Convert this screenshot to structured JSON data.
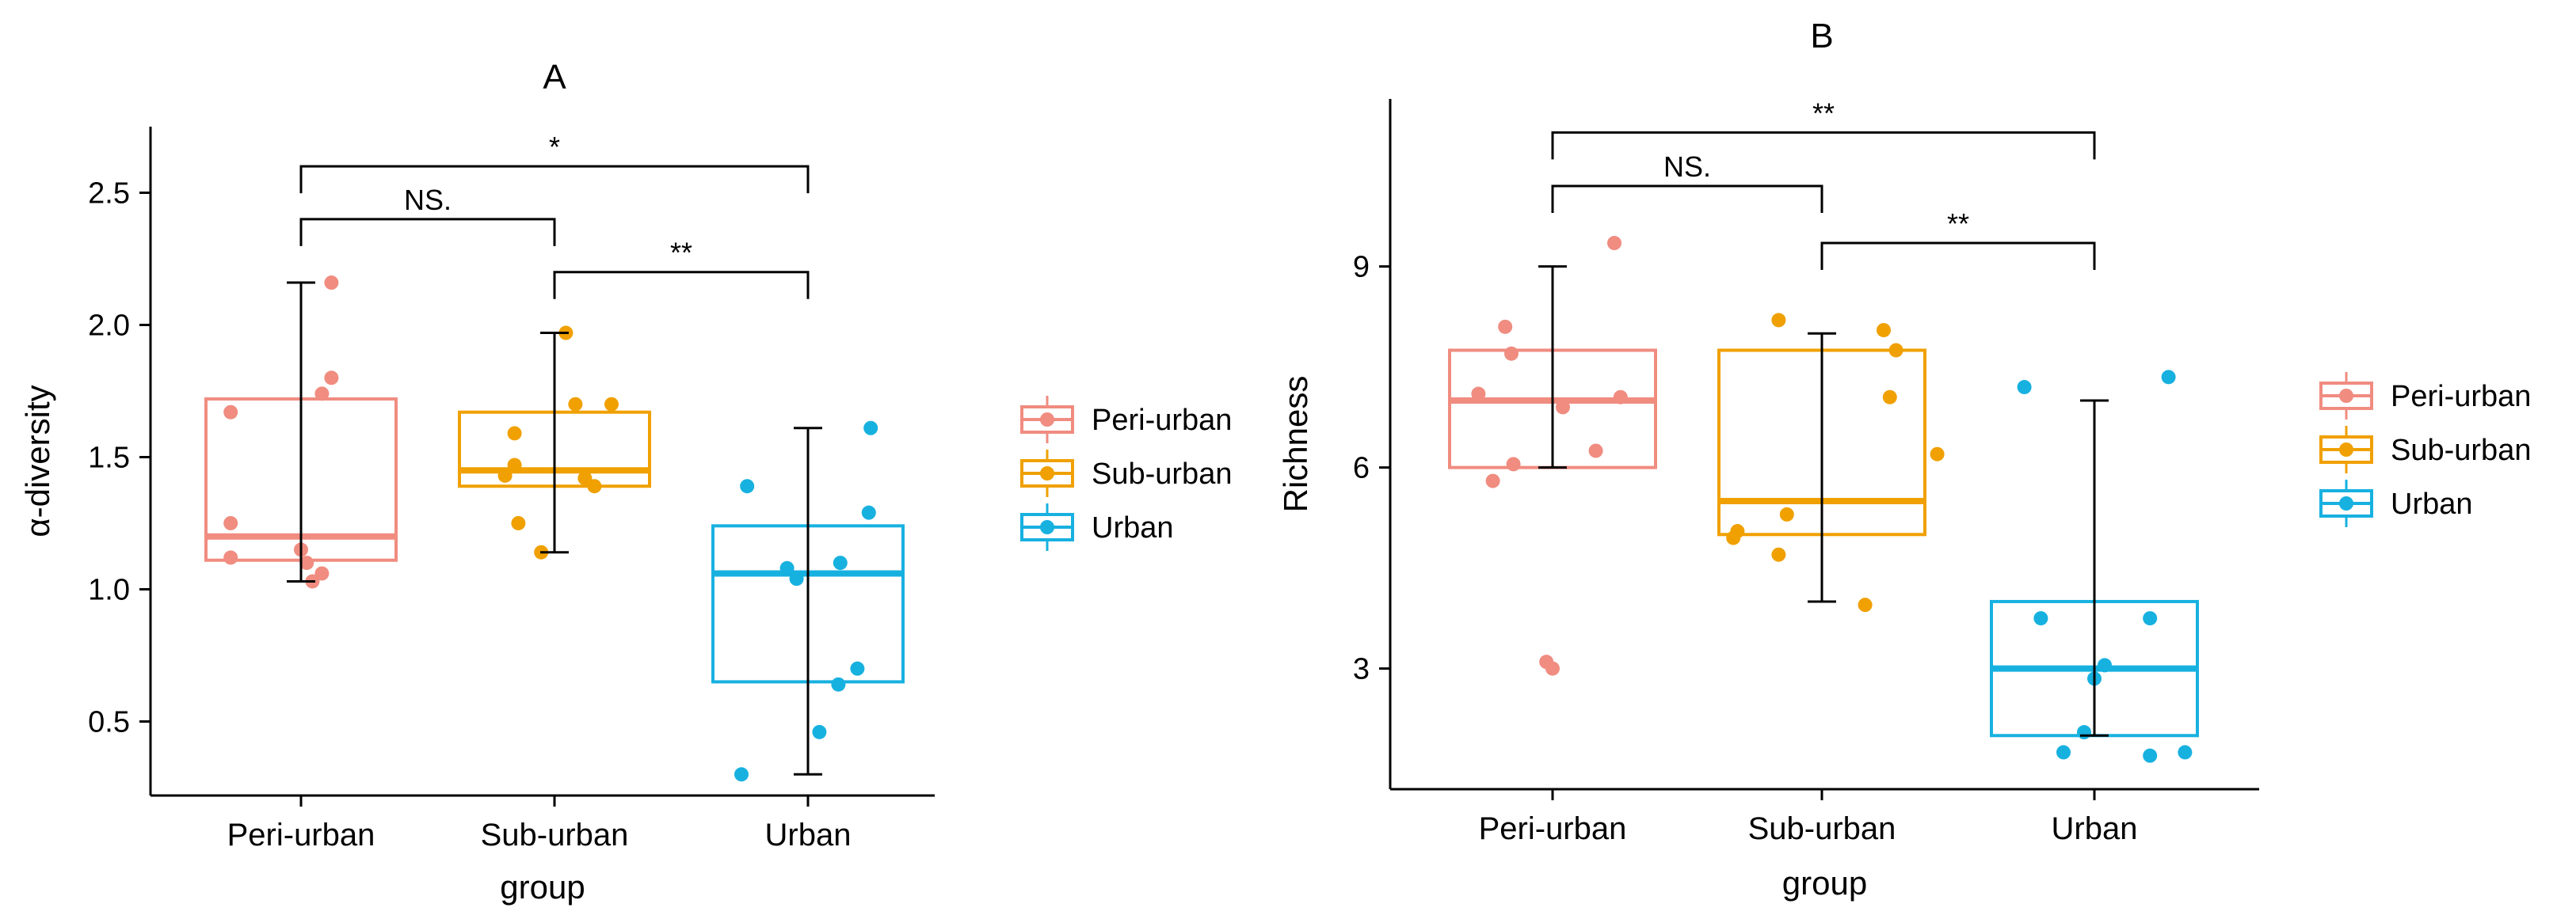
{
  "colors": {
    "Peri-urban": "#F08C80",
    "Sub-urban": "#F0A000",
    "Urban": "#17B1E0",
    "axis": "#000000"
  },
  "chart_data": [
    {
      "type": "boxplot",
      "title": "A",
      "xlabel": "group",
      "ylabel": "α-diversity",
      "categories": [
        "Peri-urban",
        "Sub-urban",
        "Urban"
      ],
      "ylim": [
        0.22,
        2.75
      ],
      "yticks": [
        0.5,
        1.0,
        1.5,
        2.0,
        2.5
      ],
      "ytick_labels": [
        "0.5",
        "1.0",
        "1.5",
        "2.0",
        "2.5"
      ],
      "boxes": [
        {
          "group": "Peri-urban",
          "q1": 1.11,
          "median": 1.2,
          "q3": 1.72,
          "whisker_low": 1.03,
          "whisker_high": 2.16
        },
        {
          "group": "Sub-urban",
          "q1": 1.39,
          "median": 1.45,
          "q3": 1.67,
          "whisker_low": 1.14,
          "whisker_high": 1.97
        },
        {
          "group": "Urban",
          "q1": 0.65,
          "median": 1.06,
          "q3": 1.24,
          "whisker_low": 0.3,
          "whisker_high": 1.61
        }
      ],
      "points": [
        {
          "group": "Peri-urban",
          "values": [
            2.16,
            1.8,
            1.74,
            1.67,
            1.25,
            1.15,
            1.12,
            1.1,
            1.06,
            1.03
          ],
          "jitter": [
            0.16,
            0.16,
            0.11,
            -0.37,
            -0.37,
            0.0,
            -0.37,
            0.03,
            0.11,
            0.06
          ]
        },
        {
          "group": "Sub-urban",
          "values": [
            1.97,
            1.7,
            1.7,
            1.59,
            1.47,
            1.43,
            1.42,
            1.39,
            1.25,
            1.14
          ],
          "jitter": [
            0.06,
            0.11,
            0.3,
            -0.21,
            -0.21,
            -0.26,
            0.16,
            0.21,
            -0.19,
            -0.07
          ]
        },
        {
          "group": "Urban",
          "values": [
            1.61,
            1.39,
            1.29,
            1.1,
            1.08,
            1.04,
            0.7,
            0.64,
            0.46,
            0.3
          ],
          "jitter": [
            0.33,
            -0.32,
            0.32,
            0.17,
            -0.11,
            -0.06,
            0.26,
            0.16,
            0.06,
            -0.35
          ]
        }
      ],
      "significance": [
        {
          "from": "Peri-urban",
          "to": "Urban",
          "label": "*",
          "y": 2.6
        },
        {
          "from": "Peri-urban",
          "to": "Sub-urban",
          "label": "NS.",
          "y": 2.4
        },
        {
          "from": "Sub-urban",
          "to": "Urban",
          "label": "**",
          "y": 2.2
        }
      ],
      "legend": {
        "position": "right",
        "entries": [
          "Peri-urban",
          "Sub-urban",
          "Urban"
        ]
      }
    },
    {
      "type": "boxplot",
      "title": "B",
      "xlabel": "group",
      "ylabel": "Richness",
      "categories": [
        "Peri-urban",
        "Sub-urban",
        "Urban"
      ],
      "ylim": [
        1.2,
        11.5
      ],
      "yticks": [
        3,
        6,
        9
      ],
      "ytick_labels": [
        "3",
        "6",
        "9"
      ],
      "boxes": [
        {
          "group": "Peri-urban",
          "q1": 6.0,
          "median": 7.0,
          "q3": 7.75,
          "whisker_low": 6.0,
          "whisker_high": 9.0
        },
        {
          "group": "Sub-urban",
          "q1": 5.0,
          "median": 5.5,
          "q3": 7.75,
          "whisker_low": 4.0,
          "whisker_high": 8.0
        },
        {
          "group": "Urban",
          "q1": 2.0,
          "median": 3.0,
          "q3": 4.0,
          "whisker_low": 2.0,
          "whisker_high": 7.0
        }
      ],
      "points": [
        {
          "group": "Peri-urban",
          "values": [
            9.35,
            8.1,
            7.7,
            7.1,
            7.05,
            6.9,
            6.25,
            6.05,
            5.8,
            3.1,
            3.0
          ],
          "jitter": [
            0.3,
            -0.23,
            -0.2,
            -0.36,
            0.33,
            0.05,
            0.21,
            -0.19,
            -0.29,
            -0.03,
            0.0
          ]
        },
        {
          "group": "Sub-urban",
          "values": [
            8.2,
            8.05,
            7.75,
            7.05,
            6.2,
            5.3,
            5.05,
            4.95,
            4.7,
            3.95
          ],
          "jitter": [
            -0.21,
            0.3,
            0.36,
            0.33,
            0.56,
            -0.17,
            -0.41,
            -0.43,
            -0.21,
            0.21
          ]
        },
        {
          "group": "Urban",
          "values": [
            7.35,
            7.2,
            3.75,
            3.75,
            3.05,
            2.85,
            2.05,
            1.75,
            1.7,
            1.75
          ],
          "jitter": [
            0.36,
            -0.34,
            -0.26,
            0.27,
            0.05,
            0.0,
            -0.05,
            -0.15,
            0.27,
            0.44
          ]
        }
      ],
      "significance": [
        {
          "from": "Peri-urban",
          "to": "Urban",
          "label": "**",
          "y": 11.0
        },
        {
          "from": "Peri-urban",
          "to": "Sub-urban",
          "label": "NS.",
          "y": 10.2
        },
        {
          "from": "Sub-urban",
          "to": "Urban",
          "label": "**",
          "y": 9.35
        }
      ],
      "legend": {
        "position": "right",
        "entries": [
          "Peri-urban",
          "Sub-urban",
          "Urban"
        ]
      }
    }
  ]
}
